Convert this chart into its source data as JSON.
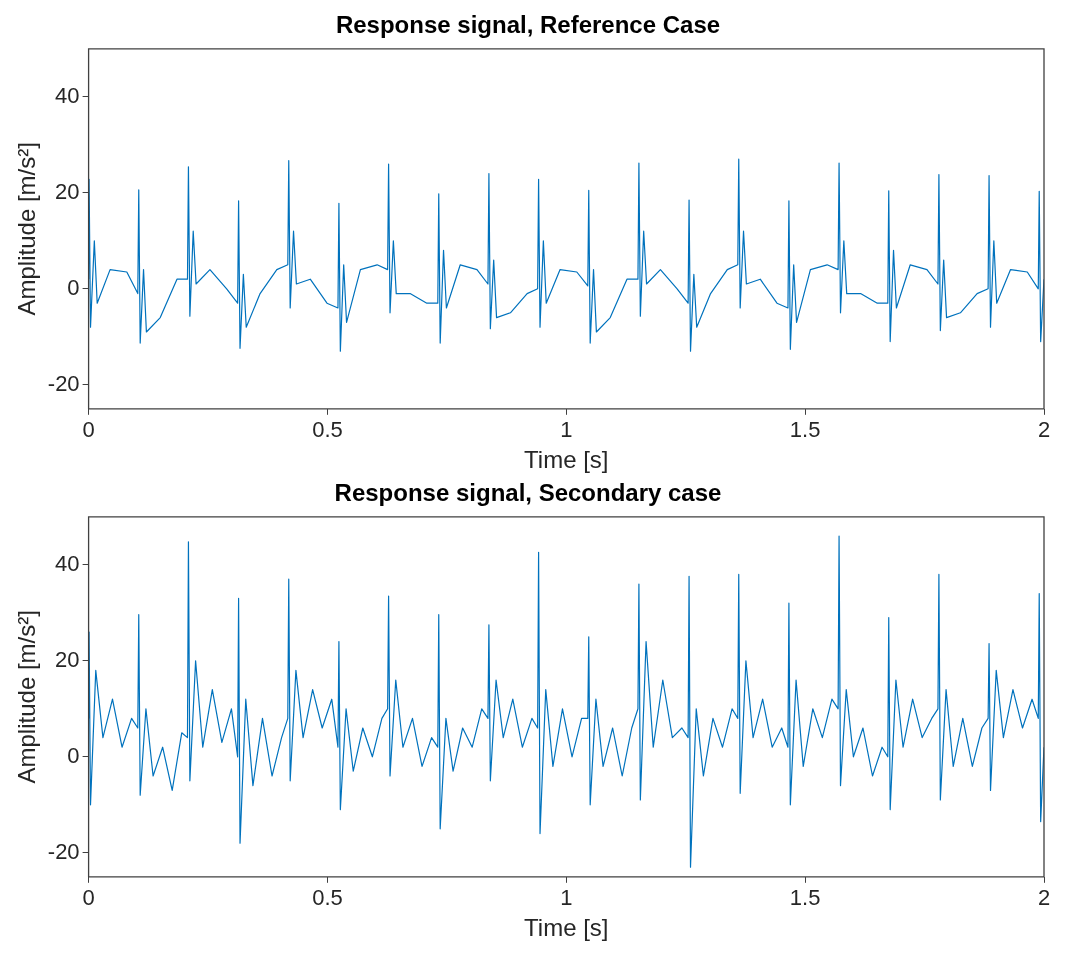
{
  "chart_data": [
    {
      "type": "line",
      "title": "Response signal, Reference Case",
      "xlabel": "Time [s]",
      "ylabel": "Amplitude [m/s²]",
      "xlim": [
        0,
        2
      ],
      "ylim": [
        -25,
        50
      ],
      "xticks": [
        0,
        0.5,
        1,
        1.5,
        2
      ],
      "yticks": [
        -20,
        0,
        20,
        40
      ],
      "x": [
        0,
        0.001,
        0.004,
        0.012,
        0.018,
        0.045,
        0.08,
        0.103,
        0.105,
        0.108,
        0.115,
        0.121,
        0.15,
        0.185,
        0.207,
        0.209,
        0.212,
        0.219,
        0.225,
        0.254,
        0.289,
        0.312,
        0.314,
        0.317,
        0.324,
        0.33,
        0.359,
        0.394,
        0.417,
        0.419,
        0.422,
        0.429,
        0.435,
        0.464,
        0.499,
        0.522,
        0.524,
        0.527,
        0.534,
        0.54,
        0.569,
        0.604,
        0.626,
        0.628,
        0.631,
        0.638,
        0.644,
        0.673,
        0.708,
        0.731,
        0.733,
        0.736,
        0.743,
        0.749,
        0.778,
        0.813,
        0.836,
        0.838,
        0.841,
        0.848,
        0.854,
        0.883,
        0.918,
        0.94,
        0.942,
        0.945,
        0.952,
        0.958,
        0.987,
        1.022,
        1.045,
        1.047,
        1.05,
        1.057,
        1.063,
        1.092,
        1.127,
        1.15,
        1.152,
        1.155,
        1.162,
        1.168,
        1.197,
        1.232,
        1.255,
        1.257,
        1.26,
        1.267,
        1.273,
        1.302,
        1.337,
        1.359,
        1.361,
        1.364,
        1.371,
        1.377,
        1.406,
        1.441,
        1.464,
        1.466,
        1.469,
        1.476,
        1.482,
        1.511,
        1.546,
        1.569,
        1.571,
        1.574,
        1.581,
        1.587,
        1.616,
        1.651,
        1.673,
        1.675,
        1.678,
        1.685,
        1.691,
        1.72,
        1.755,
        1.778,
        1.78,
        1.783,
        1.79,
        1.796,
        1.825,
        1.86,
        1.883,
        1.885,
        1.888,
        1.895,
        1.901,
        1.93,
        1.965,
        1.988,
        1.99,
        1.993,
        2.0
      ],
      "series": [
        {
          "color": "#0072bd",
          "values": [
            2,
            22.8,
            -8,
            10,
            -3,
            4,
            3.5,
            -1,
            20.6,
            -11.3,
            4,
            -9,
            -6,
            2,
            2,
            25.4,
            -5.7,
            12,
            1,
            4,
            0,
            -3,
            18.3,
            -12.4,
            3,
            -8,
            -1,
            4,
            5,
            26.7,
            -4,
            12,
            1,
            2,
            -3,
            -4,
            17.8,
            -13,
            5,
            -7,
            4,
            5,
            4,
            26,
            -5,
            10,
            -1,
            -1,
            -3,
            -3,
            19.8,
            -11.3,
            8,
            -4,
            5,
            4,
            1,
            24,
            -8.3,
            6,
            -6,
            -5,
            -1,
            0,
            22.8,
            -8,
            10,
            -3,
            4,
            3.5,
            0.6,
            20.5,
            -11.3,
            4,
            -9,
            -6,
            2,
            2,
            26.2,
            -5.7,
            12,
            1,
            4,
            0,
            -3,
            18.5,
            -13,
            3,
            -8,
            -1,
            4,
            5,
            27,
            -4,
            12,
            1,
            2,
            -3,
            -4,
            18.3,
            -12.6,
            5,
            -7,
            4,
            5,
            4,
            26.2,
            -5,
            10,
            -1,
            -1,
            -3,
            -3,
            20.4,
            -11,
            8,
            -4,
            5,
            4,
            1,
            23.8,
            -8.7,
            6,
            -6,
            -5,
            -1,
            0,
            23.6,
            -8,
            10,
            -3,
            4,
            3.5,
            0,
            20.3,
            -11,
            2
          ]
        }
      ]
    },
    {
      "type": "line",
      "title": "Response signal, Secondary case",
      "xlabel": "Time [s]",
      "ylabel": "Amplitude [m/s²]",
      "xlim": [
        0,
        2
      ],
      "ylim": [
        -25,
        50
      ],
      "xticks": [
        0,
        0.5,
        1,
        1.5,
        2
      ],
      "yticks": [
        -20,
        0,
        20,
        40
      ],
      "x": [
        0,
        0.001,
        0.004,
        0.015,
        0.03,
        0.05,
        0.07,
        0.09,
        0.103,
        0.105,
        0.108,
        0.12,
        0.135,
        0.155,
        0.175,
        0.195,
        0.207,
        0.209,
        0.212,
        0.224,
        0.239,
        0.259,
        0.279,
        0.299,
        0.312,
        0.314,
        0.317,
        0.329,
        0.344,
        0.364,
        0.384,
        0.404,
        0.417,
        0.419,
        0.422,
        0.434,
        0.449,
        0.469,
        0.489,
        0.509,
        0.522,
        0.524,
        0.527,
        0.539,
        0.554,
        0.574,
        0.594,
        0.614,
        0.626,
        0.628,
        0.631,
        0.643,
        0.658,
        0.678,
        0.698,
        0.718,
        0.731,
        0.733,
        0.736,
        0.748,
        0.763,
        0.783,
        0.803,
        0.823,
        0.836,
        0.838,
        0.841,
        0.853,
        0.868,
        0.888,
        0.908,
        0.928,
        0.94,
        0.942,
        0.945,
        0.957,
        0.972,
        0.992,
        1.012,
        1.032,
        1.045,
        1.047,
        1.05,
        1.062,
        1.077,
        1.097,
        1.117,
        1.137,
        1.15,
        1.152,
        1.155,
        1.167,
        1.182,
        1.202,
        1.222,
        1.242,
        1.255,
        1.257,
        1.26,
        1.272,
        1.287,
        1.307,
        1.327,
        1.347,
        1.359,
        1.361,
        1.364,
        1.376,
        1.391,
        1.411,
        1.431,
        1.451,
        1.464,
        1.466,
        1.469,
        1.481,
        1.496,
        1.516,
        1.536,
        1.556,
        1.569,
        1.571,
        1.574,
        1.586,
        1.601,
        1.621,
        1.641,
        1.661,
        1.673,
        1.675,
        1.678,
        1.69,
        1.705,
        1.725,
        1.745,
        1.765,
        1.778,
        1.78,
        1.783,
        1.795,
        1.81,
        1.83,
        1.85,
        1.87,
        1.883,
        1.885,
        1.888,
        1.9,
        1.915,
        1.935,
        1.955,
        1.975,
        1.988,
        1.99,
        1.993,
        2.0
      ],
      "series": [
        {
          "color": "#0072bd",
          "values": [
            8,
            26,
            -10,
            18,
            4,
            12,
            2,
            8,
            6,
            29.6,
            -8,
            10,
            -4,
            2,
            -7,
            5,
            4,
            44.8,
            -5,
            20,
            2,
            14,
            3,
            10,
            0,
            33,
            -18,
            12,
            -6,
            8,
            -4,
            4,
            8,
            37,
            -5,
            18,
            4,
            14,
            6,
            12,
            2,
            24,
            -11,
            10,
            -3,
            6,
            0,
            8,
            10,
            33.5,
            -4,
            16,
            2,
            8,
            -2,
            4,
            2,
            29.6,
            -15,
            8,
            -3,
            6,
            2,
            10,
            8,
            27.5,
            -5,
            16,
            4,
            12,
            2,
            8,
            6,
            42.6,
            -16,
            14,
            -2,
            10,
            0,
            8,
            8,
            25,
            -10,
            12,
            -2,
            6,
            -4,
            6,
            10,
            36,
            -9,
            24,
            2,
            16,
            4,
            6,
            4,
            37.6,
            -23,
            10,
            -4,
            8,
            2,
            10,
            8,
            38,
            -7.6,
            20,
            4,
            12,
            2,
            6,
            2,
            32,
            -10,
            16,
            -2,
            10,
            4,
            12,
            10,
            46,
            -6,
            14,
            0,
            6,
            -4,
            2,
            0,
            29,
            -11,
            16,
            2,
            12,
            4,
            8,
            10,
            38,
            -9,
            14,
            -2,
            8,
            -2,
            6,
            8,
            23.6,
            -7,
            18,
            4,
            14,
            6,
            12,
            8,
            34,
            -13.5,
            2
          ]
        }
      ]
    }
  ]
}
